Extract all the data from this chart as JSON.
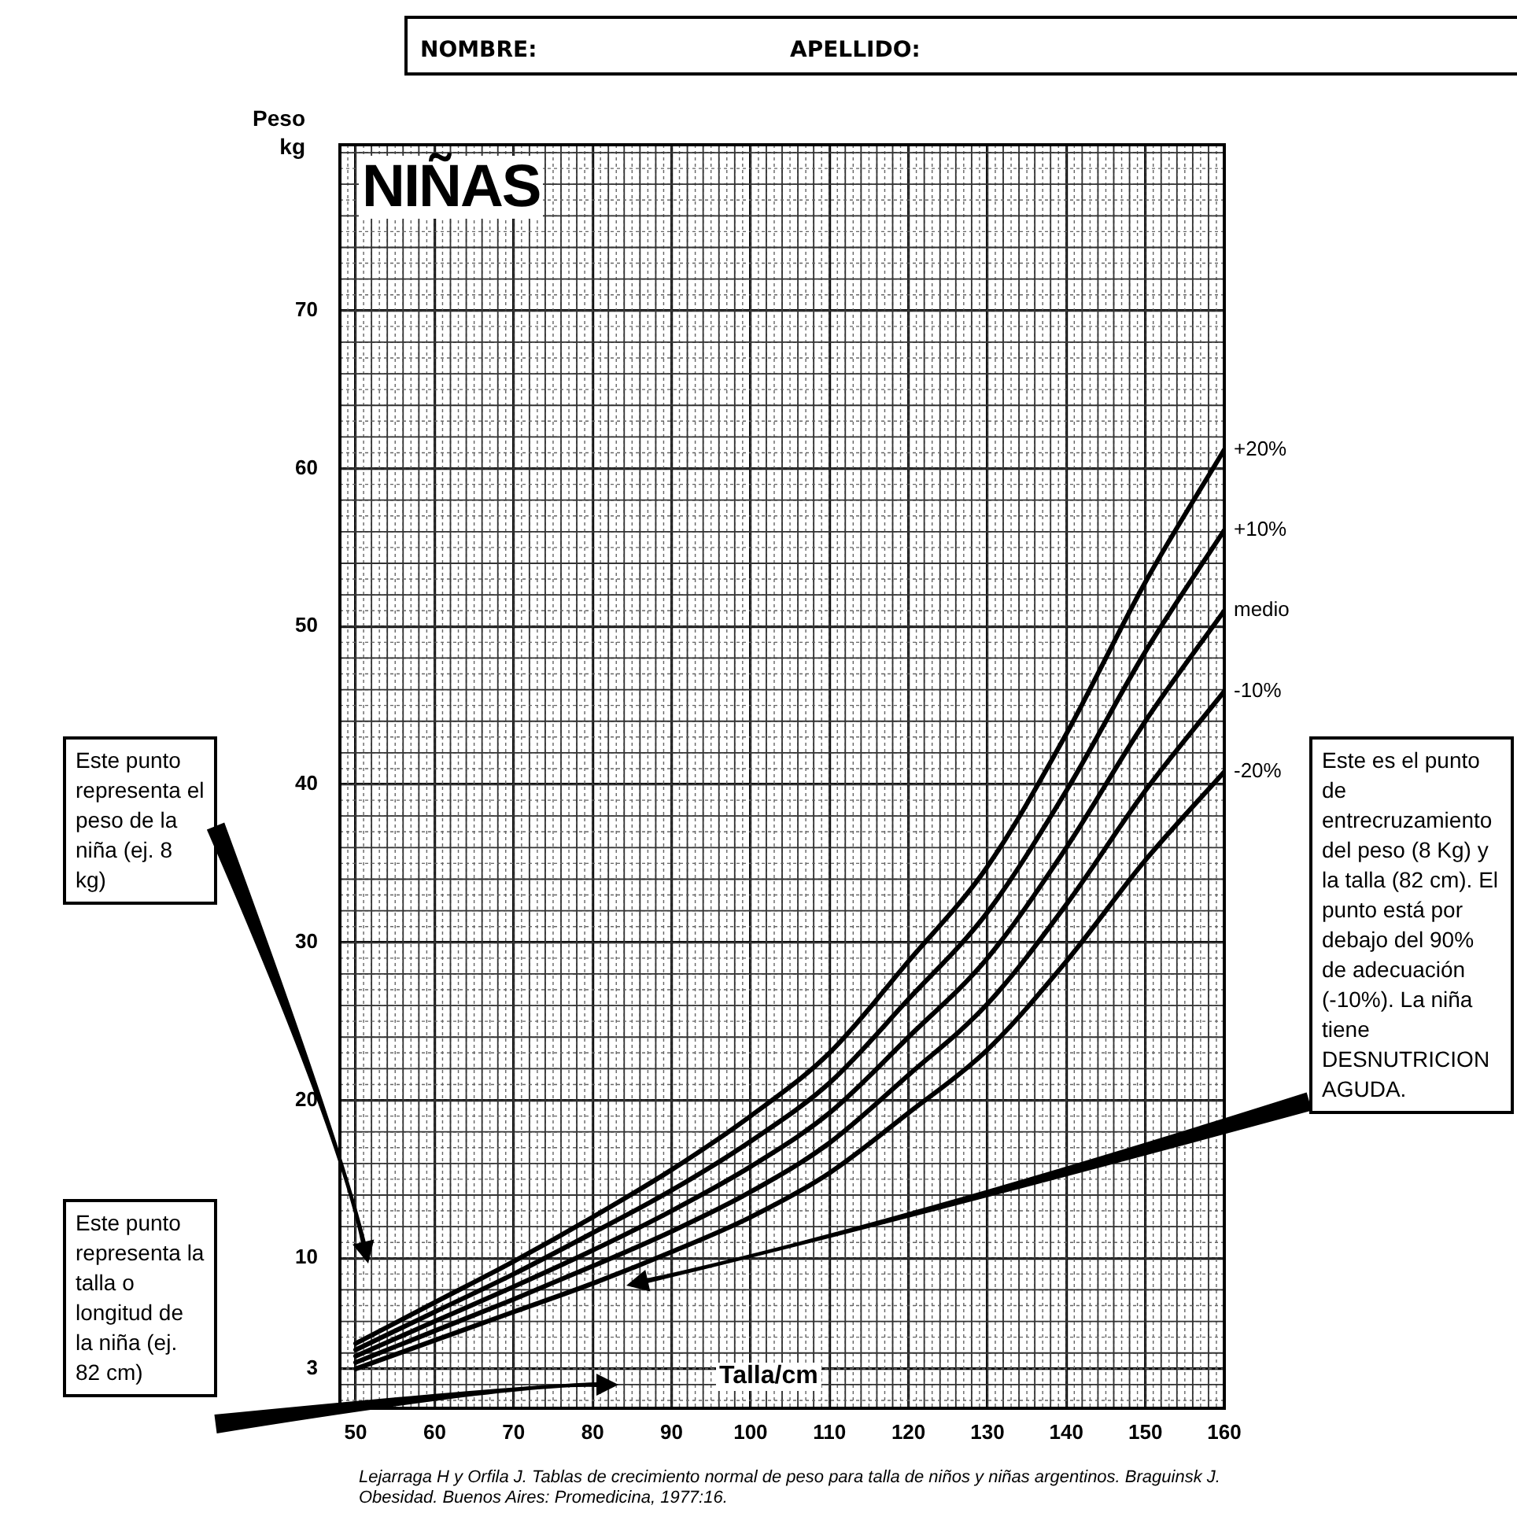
{
  "chart_data": {
    "type": "line",
    "title": "NIÑAS",
    "xlabel": "Talla/cm",
    "ylabel": "Peso kg",
    "x": [
      50,
      60,
      70,
      80,
      90,
      100,
      110,
      120,
      130,
      140,
      150,
      160
    ],
    "series": [
      {
        "name": "+20%",
        "color": "#000000",
        "values": [
          4.6,
          7.2,
          9.8,
          12.6,
          15.6,
          19.0,
          23.0,
          28.8,
          34.8,
          43.2,
          52.8,
          61.2
        ]
      },
      {
        "name": "+10%",
        "color": "#000000",
        "values": [
          4.2,
          6.6,
          9.0,
          11.6,
          14.3,
          17.4,
          21.1,
          26.4,
          31.9,
          39.6,
          48.4,
          56.1
        ]
      },
      {
        "name": "medio",
        "color": "#000000",
        "values": [
          3.8,
          6.0,
          8.2,
          10.5,
          13.0,
          15.8,
          19.2,
          24.0,
          29.0,
          36.0,
          44.0,
          51.0
        ]
      },
      {
        "name": "-10%",
        "color": "#000000",
        "values": [
          3.4,
          5.4,
          7.4,
          9.5,
          11.7,
          14.2,
          17.3,
          21.6,
          26.1,
          32.4,
          39.6,
          45.9
        ]
      },
      {
        "name": "-20%",
        "color": "#000000",
        "values": [
          3.0,
          4.8,
          6.6,
          8.4,
          10.4,
          12.6,
          15.4,
          19.2,
          23.2,
          28.8,
          35.2,
          40.8
        ]
      }
    ],
    "xlim": [
      48,
      160
    ],
    "ylim": [
      0.5,
      80.5
    ],
    "xticks": [
      50,
      60,
      70,
      80,
      90,
      100,
      110,
      120,
      130,
      140,
      150,
      160
    ],
    "yticks": [
      3,
      10,
      20,
      30,
      40,
      50,
      60,
      70
    ],
    "grid": true,
    "marker": "none",
    "line_style": "solid",
    "annotations": [
      "NOMBRE:",
      "APELLIDO:",
      "Este punto representa el peso de la niña (ej. 8 kg)",
      "Este punto representa la talla o longitud de la niña (ej. 82 cm)",
      "Este es el punto de entrecruzamiento del peso (8 Kg) y la talla (82 cm). El punto está por debajo del 90% de adecuación (-10%). La niña tiene DESNUTRICION AGUDA.",
      "Lejarraga H y Orfila J. Tablas de crecimiento normal de peso para talla de niños y niñas argentinos. Braguinsk J. Obesidad. Buenos Aires: Promedicina, 1977:16."
    ]
  }
}
